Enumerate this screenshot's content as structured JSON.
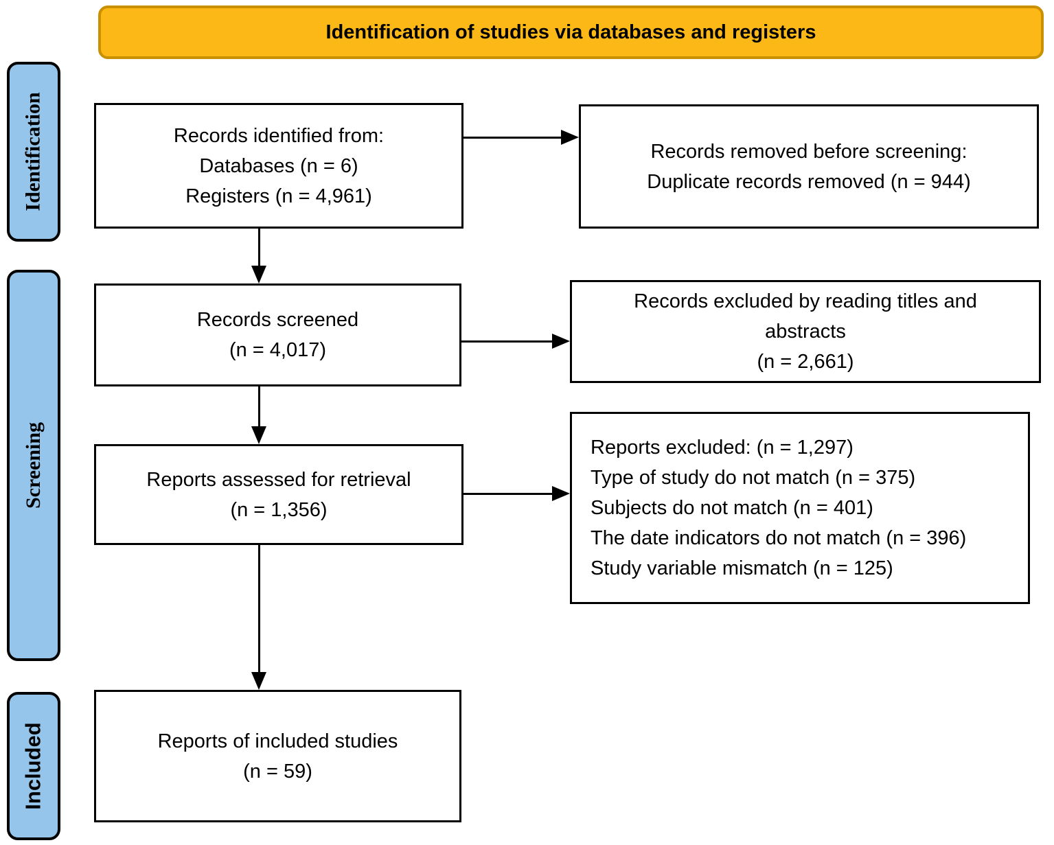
{
  "figure": {
    "title": "Identification of studies via databases and registers"
  },
  "colors": {
    "banner_fill": "#FBB817",
    "banner_border": "#C99000",
    "stage_fill": "#95C5EA",
    "stage_border": "#000000",
    "box_fill": "#FFFFFF",
    "box_border": "#000000",
    "arrow": "#000000",
    "text": "#000000",
    "background": "#FFFFFF"
  },
  "stages": [
    {
      "label": "Identification"
    },
    {
      "label": "Screening"
    },
    {
      "label": "Included"
    }
  ],
  "boxes": {
    "records_identified": {
      "lines": [
        "Records identified from:",
        "Databases (n = 6)",
        "Registers (n = 4,961)"
      ]
    },
    "records_removed": {
      "lines": [
        "Records removed before screening:",
        "Duplicate records removed (n = 944)"
      ]
    },
    "records_screened": {
      "lines": [
        "Records screened",
        "(n = 4,017)"
      ]
    },
    "records_excluded": {
      "lines": [
        "Records excluded by reading titles and",
        "abstracts",
        "(n = 2,661)"
      ]
    },
    "reports_assessed": {
      "lines": [
        "Reports assessed for retrieval",
        "(n = 1,356)"
      ]
    },
    "reports_excluded": {
      "lines": [
        "Reports excluded: (n = 1,297)",
        "Type of study do not match (n = 375)",
        "Subjects do not match (n = 401)",
        "The date indicators do not match (n = 396)",
        "Study variable mismatch (n = 125)"
      ]
    },
    "reports_included": {
      "lines": [
        "Reports of included studies",
        "(n = 59)"
      ]
    }
  }
}
